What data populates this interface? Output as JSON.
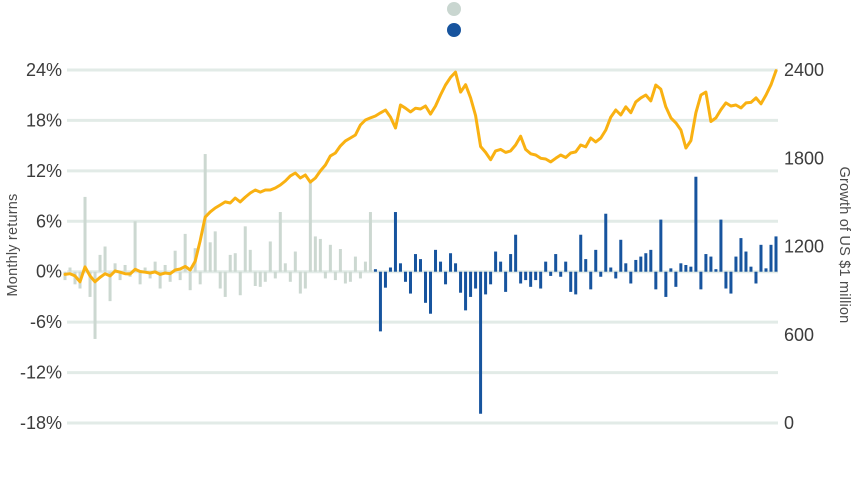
{
  "background_color": "#ffffff",
  "chart_data": {
    "type": "combo-bar-line",
    "grid": "horizontal-on",
    "grid_color": "#e2ebe7",
    "text_color": "#3c3c3c",
    "left_axis": {
      "label": "Monthly returns",
      "range": [
        -18,
        24
      ],
      "ticks": [
        {
          "label": "24%",
          "value": 24
        },
        {
          "label": "18%",
          "value": 18
        },
        {
          "label": "12%",
          "value": 12
        },
        {
          "label": "6%",
          "value": 6
        },
        {
          "label": "0%",
          "value": 0
        },
        {
          "label": "-6%",
          "value": -6
        },
        {
          "label": "-12%",
          "value": -12
        },
        {
          "label": "-18%",
          "value": -18
        }
      ]
    },
    "right_axis": {
      "label": "Growth of US $1 million",
      "range": [
        0,
        2400
      ],
      "ticks": [
        {
          "label": "2400",
          "value": 2400
        },
        {
          "label": "1800",
          "value": 1800
        },
        {
          "label": "1200",
          "value": 1200
        },
        {
          "label": "600",
          "value": 600
        },
        {
          "label": "0",
          "value": 0
        }
      ]
    },
    "legend": [
      {
        "label": "",
        "color": "#c9d6d0"
      },
      {
        "label": "",
        "color": "#17549e"
      }
    ],
    "bars": {
      "axis": "left",
      "unit": "percent",
      "split_index": 62,
      "color_period_1": "#ccd8d1",
      "color_period_2": "#17549e",
      "values": [
        -1.0,
        0.5,
        -1.5,
        -2.0,
        8.9,
        -3.0,
        -8.0,
        2.0,
        3.0,
        -3.5,
        1.0,
        -1.0,
        0.8,
        -0.6,
        6.0,
        -1.5,
        0.5,
        -0.8,
        1.2,
        -2.0,
        0.8,
        -1.2,
        2.5,
        -1.0,
        4.5,
        -2.2,
        2.8,
        -1.5,
        14.0,
        3.5,
        4.8,
        -2.0,
        -3.0,
        2.0,
        2.2,
        -2.8,
        5.4,
        2.6,
        -1.7,
        -1.8,
        -1.2,
        3.6,
        -0.8,
        7.1,
        1.0,
        -1.2,
        2.4,
        -2.6,
        -2.0,
        10.7,
        4.2,
        3.9,
        -0.8,
        3.2,
        -1.0,
        2.7,
        -1.4,
        -1.2,
        1.8,
        -0.8,
        1.2,
        7.1,
        0.3,
        -7.1,
        -1.9,
        0.5,
        7.1,
        1.0,
        -1.2,
        -2.6,
        2.1,
        1.5,
        -3.7,
        -5.0,
        2.6,
        1.2,
        -1.5,
        2.2,
        1.0,
        -2.5,
        -4.6,
        -3.0,
        -2.0,
        -16.9,
        -2.7,
        -1.5,
        2.4,
        1.2,
        -2.4,
        2.1,
        4.4,
        -1.4,
        -1.0,
        -1.8,
        -1.0,
        -2.0,
        1.2,
        -0.5,
        2.1,
        -0.6,
        1.2,
        -2.4,
        -2.7,
        4.4,
        1.5,
        -2.1,
        2.6,
        -0.6,
        6.9,
        0.5,
        -0.8,
        3.8,
        1.0,
        -1.4,
        1.4,
        1.8,
        2.2,
        2.6,
        -2.1,
        6.2,
        -3.0,
        0.4,
        -1.8,
        1.0,
        0.8,
        0.6,
        11.3,
        -2.1,
        2.1,
        1.8,
        0.3,
        6.2,
        -2.0,
        -2.6,
        1.8,
        4.0,
        2.4,
        0.6,
        -1.4,
        3.2,
        0.4,
        3.2,
        4.2
      ]
    },
    "line": {
      "axis": "right",
      "color": "#f9b112",
      "values": [
        1010,
        1015,
        1000,
        960,
        1061,
        1000,
        960,
        990,
        1015,
        1000,
        1034,
        1025,
        1015,
        1013,
        1045,
        1030,
        1025,
        1020,
        1027,
        1010,
        1020,
        1015,
        1040,
        1047,
        1065,
        1040,
        1100,
        1240,
        1400,
        1435,
        1462,
        1482,
        1503,
        1496,
        1530,
        1503,
        1536,
        1564,
        1584,
        1570,
        1584,
        1584,
        1598,
        1618,
        1645,
        1680,
        1700,
        1666,
        1686,
        1638,
        1666,
        1714,
        1754,
        1816,
        1836,
        1884,
        1918,
        1938,
        1958,
        2026,
        2060,
        2074,
        2087,
        2108,
        2128,
        2080,
        2006,
        2162,
        2140,
        2115,
        2140,
        2135,
        2155,
        2100,
        2155,
        2230,
        2298,
        2350,
        2386,
        2250,
        2300,
        2210,
        2090,
        1880,
        1840,
        1790,
        1850,
        1860,
        1840,
        1850,
        1890,
        1950,
        1860,
        1830,
        1822,
        1800,
        1795,
        1775,
        1800,
        1822,
        1805,
        1836,
        1843,
        1890,
        1877,
        1938,
        1911,
        1938,
        1992,
        2080,
        2128,
        2094,
        2150,
        2110,
        2183,
        2210,
        2230,
        2190,
        2298,
        2270,
        2150,
        2074,
        2040,
        1992,
        1870,
        1920,
        2110,
        2230,
        2250,
        2050,
        2074,
        2130,
        2176,
        2155,
        2162,
        2142,
        2176,
        2180,
        2210,
        2170,
        2230,
        2300,
        2395
      ]
    }
  }
}
